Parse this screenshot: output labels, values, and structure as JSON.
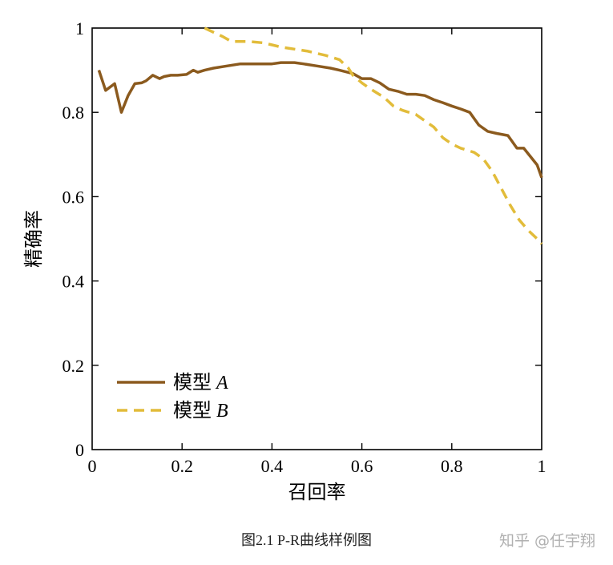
{
  "chart_data": {
    "type": "line",
    "title": "",
    "xlabel": "召回率",
    "ylabel": "精确率",
    "xlim": [
      0,
      1
    ],
    "ylim": [
      0,
      1
    ],
    "xticks": [
      0,
      0.2,
      0.4,
      0.6,
      0.8,
      1
    ],
    "yticks": [
      0,
      0.2,
      0.4,
      0.6,
      0.8,
      1
    ],
    "xtick_labels": [
      "0",
      "0.2",
      "0.4",
      "0.6",
      "0.8",
      "1"
    ],
    "ytick_labels": [
      "0",
      "0.2",
      "0.4",
      "0.6",
      "0.8",
      "1"
    ],
    "grid": false,
    "legend_position": "bottom-left",
    "series": [
      {
        "name": "模型 A",
        "legend_prefix": "模型",
        "legend_italic": "A",
        "color": "#8B5A1E",
        "style": "solid",
        "x": [
          0.015,
          0.03,
          0.05,
          0.065,
          0.08,
          0.095,
          0.11,
          0.12,
          0.135,
          0.15,
          0.16,
          0.175,
          0.19,
          0.21,
          0.225,
          0.235,
          0.25,
          0.27,
          0.3,
          0.33,
          0.35,
          0.37,
          0.4,
          0.42,
          0.45,
          0.47,
          0.5,
          0.53,
          0.55,
          0.58,
          0.6,
          0.62,
          0.64,
          0.66,
          0.68,
          0.7,
          0.72,
          0.74,
          0.76,
          0.78,
          0.8,
          0.82,
          0.84,
          0.86,
          0.88,
          0.9,
          0.925,
          0.945,
          0.96,
          0.975,
          0.99,
          1.0
        ],
        "y": [
          0.9,
          0.852,
          0.868,
          0.8,
          0.84,
          0.868,
          0.87,
          0.875,
          0.888,
          0.88,
          0.885,
          0.888,
          0.888,
          0.89,
          0.9,
          0.895,
          0.9,
          0.905,
          0.91,
          0.915,
          0.915,
          0.915,
          0.915,
          0.918,
          0.918,
          0.915,
          0.91,
          0.905,
          0.9,
          0.892,
          0.88,
          0.88,
          0.87,
          0.855,
          0.85,
          0.843,
          0.843,
          0.84,
          0.83,
          0.823,
          0.815,
          0.808,
          0.8,
          0.77,
          0.755,
          0.75,
          0.745,
          0.715,
          0.715,
          0.695,
          0.675,
          0.645
        ]
      },
      {
        "name": "模型 B",
        "legend_prefix": "模型",
        "legend_italic": "B",
        "color": "#E2BC3A",
        "style": "dashed",
        "x": [
          0.25,
          0.27,
          0.29,
          0.31,
          0.33,
          0.35,
          0.38,
          0.4,
          0.42,
          0.45,
          0.48,
          0.5,
          0.52,
          0.55,
          0.57,
          0.58,
          0.6,
          0.62,
          0.65,
          0.67,
          0.69,
          0.72,
          0.74,
          0.76,
          0.78,
          0.8,
          0.82,
          0.85,
          0.87,
          0.89,
          0.91,
          0.93,
          0.95,
          0.97,
          0.99,
          1.0
        ],
        "y": [
          1.0,
          0.99,
          0.98,
          0.968,
          0.968,
          0.968,
          0.965,
          0.96,
          0.955,
          0.95,
          0.945,
          0.94,
          0.935,
          0.925,
          0.905,
          0.888,
          0.87,
          0.855,
          0.835,
          0.815,
          0.805,
          0.795,
          0.78,
          0.765,
          0.74,
          0.725,
          0.715,
          0.705,
          0.69,
          0.66,
          0.62,
          0.58,
          0.545,
          0.52,
          0.5,
          0.488
        ]
      }
    ]
  },
  "caption": "图2.1    P-R曲线样例图",
  "watermark": "知乎 @任宇翔"
}
